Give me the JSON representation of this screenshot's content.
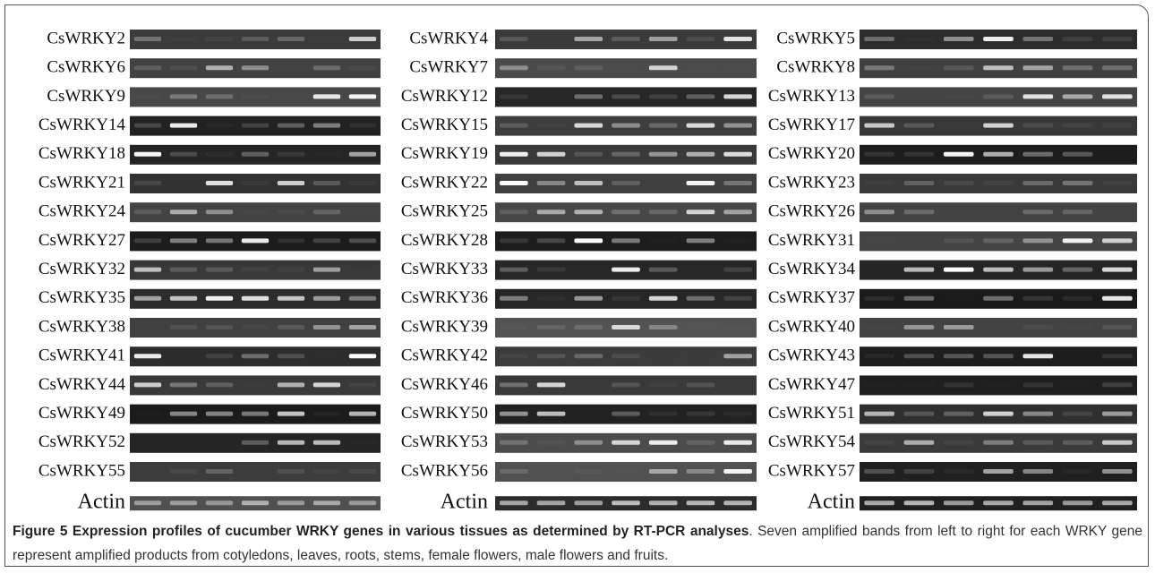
{
  "figure": {
    "columns": [
      {
        "genes": [
          "CsWRKY2",
          "CsWRKY6",
          "CsWRKY9",
          "CsWRKY14",
          "CsWRKY18",
          "CsWRKY21",
          "CsWRKY24",
          "CsWRKY27",
          "CsWRKY32",
          "CsWRKY35",
          "CsWRKY38",
          "CsWRKY41",
          "CsWRKY44",
          "CsWRKY49",
          "CsWRKY52",
          "CsWRKY55",
          "Actin"
        ]
      },
      {
        "genes": [
          "CsWRKY4",
          "CsWRKY7",
          "CsWRKY12",
          "CsWRKY15",
          "CsWRKY19",
          "CsWRKY22",
          "CsWRKY25",
          "CsWRKY28",
          "CsWRKY33",
          "CsWRKY36",
          "CsWRKY39",
          "CsWRKY42",
          "CsWRKY46",
          "CsWRKY50",
          "CsWRKY53",
          "CsWRKY56",
          "Actin"
        ]
      },
      {
        "genes": [
          "CsWRKY5",
          "CsWRKY8",
          "CsWRKY13",
          "CsWRKY17",
          "CsWRKY20",
          "CsWRKY23",
          "CsWRKY26",
          "CsWRKY31",
          "CsWRKY34",
          "CsWRKY37",
          "CsWRKY40",
          "CsWRKY43",
          "CsWRKY47",
          "CsWRKY51",
          "CsWRKY54",
          "CsWRKY57",
          "Actin"
        ]
      }
    ],
    "caption": {
      "title": "Figure 5 Expression profiles of cucumber WRKY genes in various tissues as determined by RT-PCR analyses",
      "text": ". Seven amplified bands from left to right for each WRKY gene represent amplified products from cotyledons, leaves, roots, stems, female flowers, male flowers and fruits."
    }
  }
}
